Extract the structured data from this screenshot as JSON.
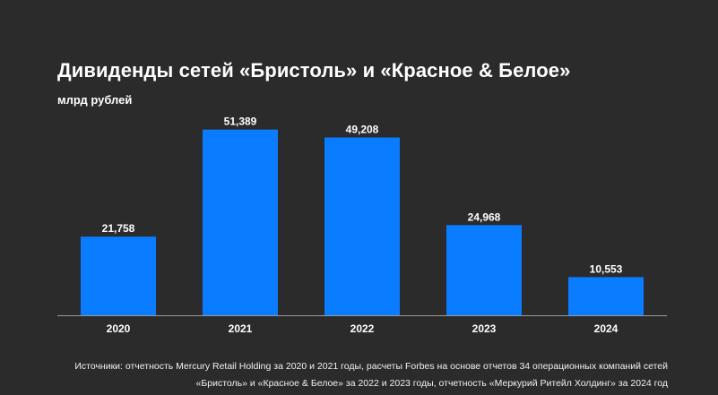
{
  "chart_data": {
    "type": "bar",
    "title": "Дивиденды сетей «Бристоль» и «Красное & Белое»",
    "subtitle": "млрд рублей",
    "categories": [
      "2020",
      "2021",
      "2022",
      "2023",
      "2024"
    ],
    "values": [
      21.758,
      51.389,
      49.208,
      24.968,
      10.553
    ],
    "data_labels": [
      "21,758",
      "51,389",
      "49,208",
      "24,968",
      "10,553"
    ],
    "ylim": [
      0,
      60
    ],
    "grid": false,
    "bar_color": "#0a7cff"
  },
  "source": {
    "line1": "Источники: отчетность Mercury Retail Holding за 2020 и 2021 годы, расчеты Forbes на основе отчетов 34 операционных компаний сетей",
    "line2": "«Бристоль» и «Красное & Белое» за 2022 и 2023 годы, отчетность «Меркурий Ритейл Холдинг» за 2024 год"
  }
}
